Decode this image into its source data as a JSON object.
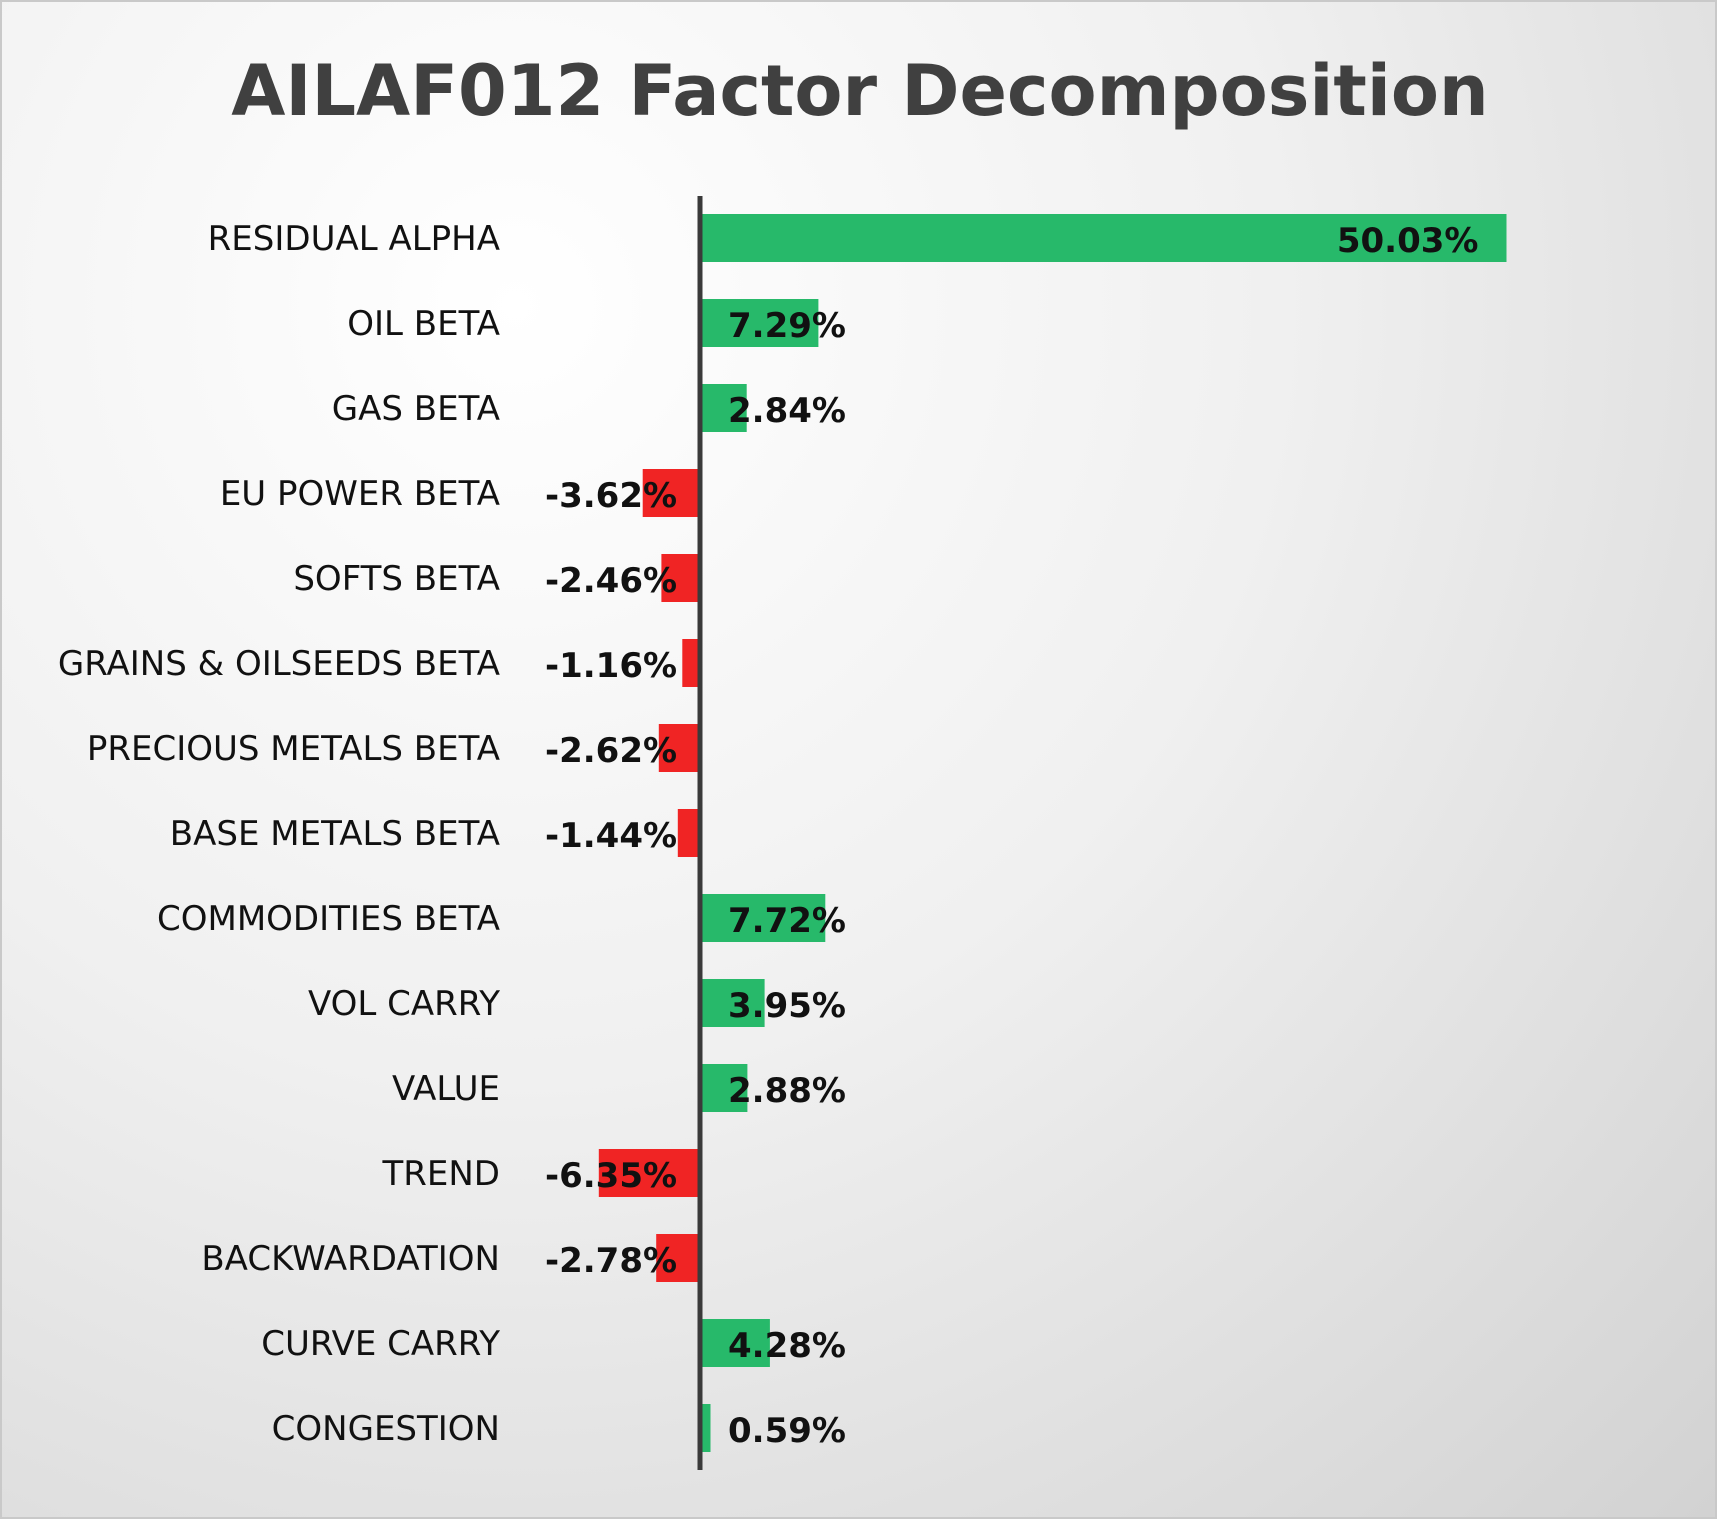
{
  "chart_data": {
    "type": "bar",
    "orientation": "horizontal",
    "title": "AILAF012 Factor Decomposition",
    "categories": [
      "RESIDUAL ALPHA",
      "OIL BETA",
      "GAS BETA",
      "EU POWER BETA",
      "SOFTS BETA",
      "GRAINS & OILSEEDS BETA",
      "PRECIOUS METALS BETA",
      "BASE METALS BETA",
      "COMMODITIES BETA",
      "VOL CARRY",
      "VALUE",
      "TREND",
      "BACKWARDATION",
      "CURVE CARRY",
      "CONGESTION"
    ],
    "values": [
      50.03,
      7.29,
      2.84,
      -3.62,
      -2.46,
      -1.16,
      -2.62,
      -1.44,
      7.72,
      3.95,
      2.88,
      -6.35,
      -2.78,
      4.28,
      0.59
    ],
    "value_labels": [
      "50.03%",
      "7.29%",
      "2.84%",
      "-3.62%",
      "-2.46%",
      "-1.16%",
      "-2.62%",
      "-1.44%",
      "7.72%",
      "3.95%",
      "2.88%",
      "-6.35%",
      "-2.78%",
      "4.28%",
      "0.59%"
    ],
    "xlim": [
      -10,
      60
    ],
    "grid": false,
    "legend": "none",
    "colors": {
      "positive": "#27b96a",
      "negative": "#f02424",
      "axis": "#3a3a3a"
    }
  }
}
